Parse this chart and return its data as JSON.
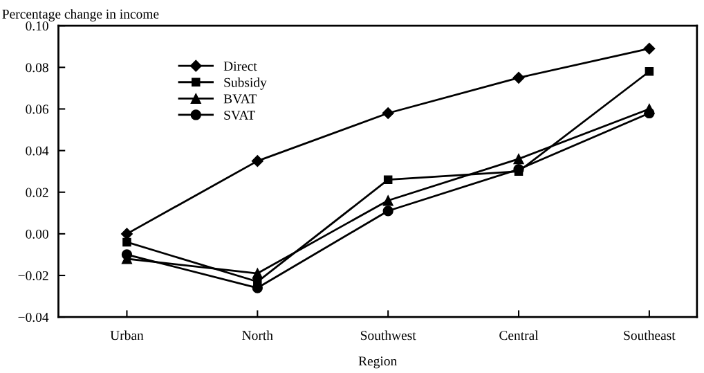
{
  "chart_data": {
    "type": "line",
    "ylabel": "Percentage change in income",
    "xlabel": "Region",
    "categories": [
      "Urban",
      "North",
      "Southwest",
      "Central",
      "Southeast"
    ],
    "series": [
      {
        "name": "Direct",
        "color": "#000000",
        "marker": "diamond",
        "values": [
          0.0,
          0.035,
          0.058,
          0.075,
          0.089
        ]
      },
      {
        "name": "Subsidy",
        "color": "#000000",
        "marker": "square",
        "values": [
          -0.004,
          -0.023,
          0.026,
          0.03,
          0.078
        ]
      },
      {
        "name": "BVAT",
        "color": "#000000",
        "marker": "triangle",
        "values": [
          -0.012,
          -0.019,
          0.016,
          0.036,
          0.06
        ]
      },
      {
        "name": "SVAT",
        "color": "#000000",
        "marker": "circle",
        "values": [
          -0.01,
          -0.026,
          0.011,
          0.031,
          0.058
        ]
      }
    ],
    "ylim": [
      -0.04,
      0.1
    ],
    "yticks": [
      {
        "value": -0.04,
        "label": "−0.04"
      },
      {
        "value": -0.02,
        "label": "−0.02"
      },
      {
        "value": 0.0,
        "label": "0.00"
      },
      {
        "value": 0.02,
        "label": "0.02"
      },
      {
        "value": 0.04,
        "label": "0.04"
      },
      {
        "value": 0.06,
        "label": "0.06"
      },
      {
        "value": 0.08,
        "label": "0.08"
      },
      {
        "value": 0.1,
        "label": "0.10"
      }
    ],
    "legend": "top left",
    "grid": false,
    "line_style": "solid"
  }
}
